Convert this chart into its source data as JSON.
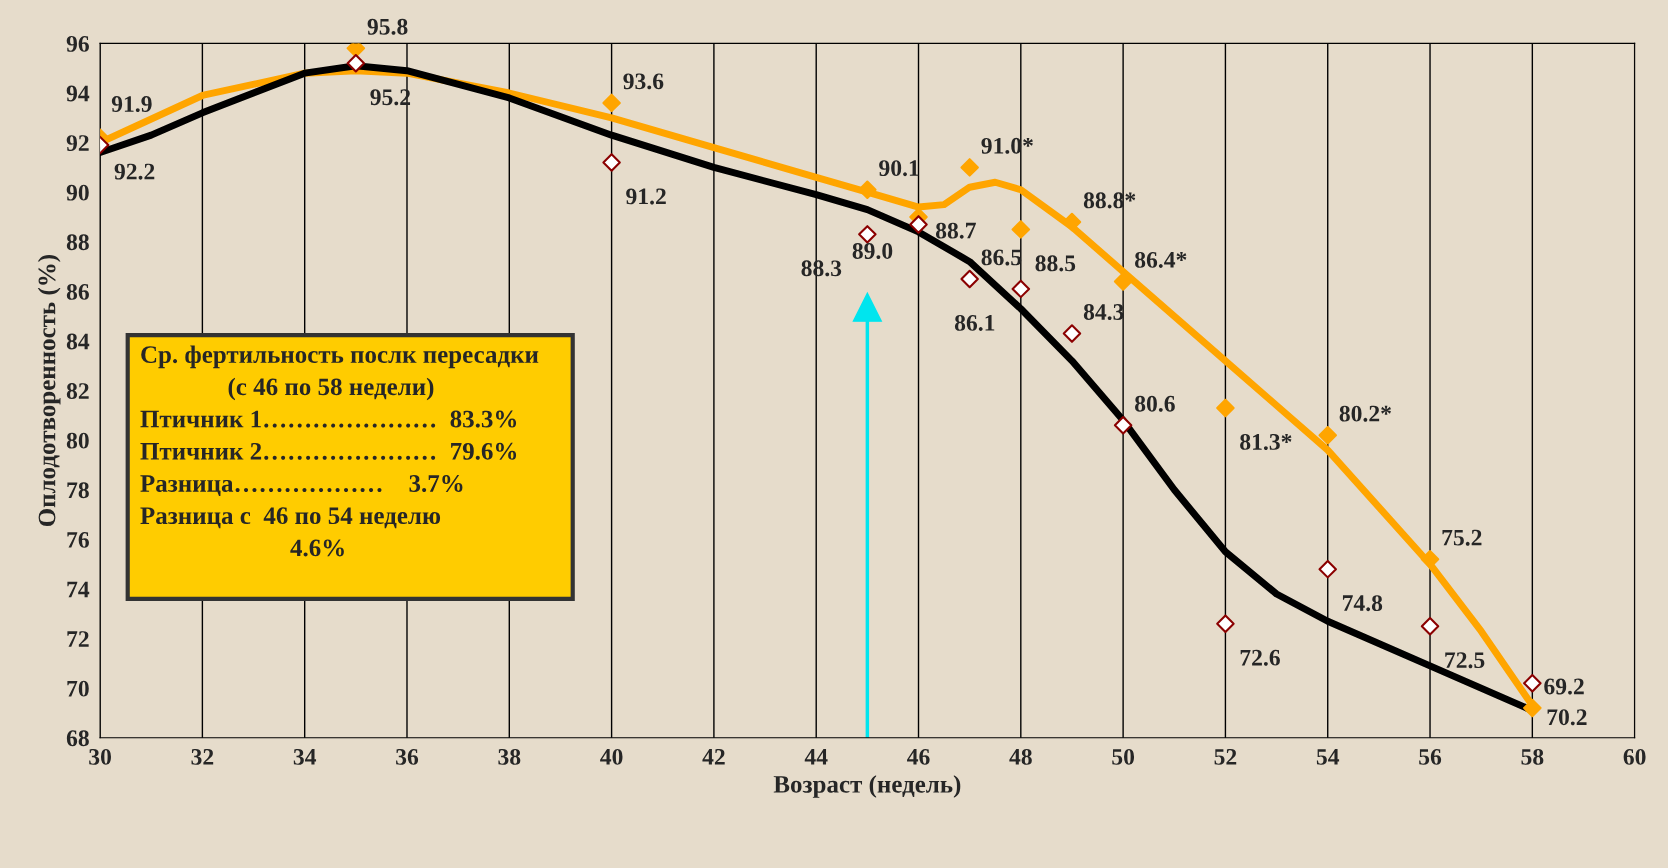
{
  "chart_data": {
    "type": "scatter",
    "xlabel": "Возраст (недель)",
    "ylabel": "Оплодотворенность (%)",
    "xlim": [
      30,
      60
    ],
    "xticks": [
      30,
      32,
      34,
      36,
      38,
      40,
      42,
      44,
      46,
      48,
      50,
      52,
      54,
      56,
      58,
      60
    ],
    "ylim": [
      68,
      96
    ],
    "yticks": [
      68,
      70,
      72,
      74,
      76,
      78,
      80,
      82,
      84,
      86,
      88,
      90,
      92,
      94,
      96
    ],
    "grid": "x",
    "series": [
      {
        "type": "line",
        "marker": "none",
        "color": "#ffa500",
        "x": [
          30,
          32,
          34,
          35,
          36,
          38,
          40,
          42,
          44,
          45,
          46,
          46.5,
          47,
          47.5,
          48,
          49,
          50,
          52,
          54,
          56,
          57,
          58
        ],
        "values": [
          92.0,
          93.9,
          94.8,
          94.9,
          94.8,
          94.0,
          93.0,
          91.8,
          90.6,
          90.0,
          89.4,
          89.5,
          90.2,
          90.4,
          90.1,
          88.6,
          86.8,
          83.2,
          79.6,
          75.0,
          72.3,
          69.3
        ]
      },
      {
        "type": "line",
        "marker": "none",
        "color": "#000000",
        "x": [
          30,
          31,
          32,
          34,
          35,
          36,
          38,
          40,
          42,
          44,
          45,
          46,
          47,
          48,
          49,
          50,
          51,
          52,
          53,
          54,
          56,
          58
        ],
        "values": [
          91.6,
          92.3,
          93.2,
          94.8,
          95.1,
          94.9,
          93.8,
          92.3,
          91.0,
          89.9,
          89.3,
          88.4,
          87.2,
          85.3,
          83.2,
          80.8,
          78.0,
          75.5,
          73.8,
          72.7,
          70.9,
          69.1
        ]
      },
      {
        "marker": "diamond",
        "color": "#ffa500",
        "x": [
          30,
          35,
          40,
          45,
          46,
          47,
          48,
          49,
          50,
          52,
          54,
          56,
          58
        ],
        "values": [
          92.2,
          95.8,
          93.6,
          90.1,
          89.0,
          91.0,
          88.5,
          88.8,
          86.4,
          81.3,
          80.2,
          75.2,
          69.2
        ],
        "value_labels": [
          "92.2",
          "95.8",
          "93.6",
          "90.1",
          "89.0",
          "91.0*",
          "88.5",
          "88.8*",
          "86.4*",
          "81.3*",
          "80.2*",
          "75.2",
          "69.2"
        ]
      },
      {
        "marker": "diamond",
        "color": "#8b0000",
        "x": [
          30,
          35,
          40,
          45,
          46,
          47,
          48,
          49,
          50,
          52,
          54,
          56,
          58
        ],
        "values": [
          91.9,
          95.2,
          91.2,
          88.3,
          88.7,
          86.5,
          86.1,
          84.3,
          80.6,
          72.6,
          74.8,
          72.5,
          70.2
        ],
        "value_labels": [
          "91.9",
          "95.2",
          "91.2",
          "88.3",
          "88.7",
          "86.5",
          "86.1",
          "84.3",
          "80.6",
          "72.6",
          "74.8",
          "72.5",
          "70.2"
        ]
      }
    ],
    "ref_lines": [
      {
        "axis": "x",
        "value": 45,
        "color": "#00e5ee"
      }
    ],
    "annotations": [
      "Ср. фертильность послк пересадки",
      "(с 46 по 58 недели)",
      "Птичник 1…………………  83.3%",
      "Птичник 2…………………  79.6%",
      "Разница………………    3.7%",
      "Разница с  46 по 54 неделю",
      "4.6%"
    ]
  }
}
